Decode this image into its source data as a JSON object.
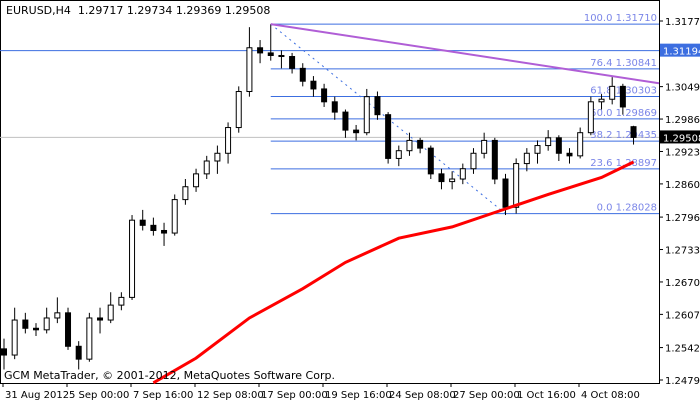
{
  "header": {
    "symbol": "EURUSD,H4",
    "open": "1.29717",
    "high": "1.29734",
    "low": "1.29369",
    "close": "1.29508"
  },
  "copyright": "GCM MetaTrader, © 2001-2012, MetaQuotes Software Corp.",
  "colors": {
    "candle": "#000000",
    "grid_level": "#3c6ee0",
    "fib_text": "#7b86e8",
    "trendline": "#b05ed6",
    "ma": "#ff0000",
    "current_price_line": "#c0c0c0"
  },
  "chart_data": {
    "type": "candlestick",
    "symbol": "EURUSD",
    "timeframe": "H4",
    "ylim": [
      1.24795,
      1.3177
    ],
    "y_ticks": [
      "1.31770",
      "1.30495",
      "1.29865",
      "1.29235",
      "1.28605",
      "1.27960",
      "1.27330",
      "1.26700",
      "1.26070",
      "1.25425",
      "1.24795"
    ],
    "x_ticks": [
      "31 Aug 2012",
      "5 Sep 00:00",
      "7 Sep 16:00",
      "12 Sep 08:00",
      "17 Sep 00:00",
      "19 Sep 16:00",
      "24 Sep 08:00",
      "27 Sep 00:00",
      "1 Oct 16:00",
      "4 Oct 08:00"
    ],
    "candles": [
      [
        1.254,
        1.256,
        1.25,
        1.2528
      ],
      [
        1.2528,
        1.262,
        1.252,
        1.2596
      ],
      [
        1.2596,
        1.261,
        1.257,
        1.258
      ],
      [
        1.258,
        1.259,
        1.2565,
        1.2577
      ],
      [
        1.2577,
        1.262,
        1.257,
        1.26
      ],
      [
        1.26,
        1.264,
        1.259,
        1.261
      ],
      [
        1.261,
        1.262,
        1.2538,
        1.2545
      ],
      [
        1.2545,
        1.2555,
        1.25,
        1.252
      ],
      [
        1.252,
        1.261,
        1.2515,
        1.26
      ],
      [
        1.26,
        1.262,
        1.257,
        1.2596
      ],
      [
        1.2596,
        1.265,
        1.259,
        1.2625
      ],
      [
        1.2625,
        1.265,
        1.2615,
        1.264
      ],
      [
        1.264,
        1.28,
        1.2635,
        1.279
      ],
      [
        1.279,
        1.281,
        1.277,
        1.278
      ],
      [
        1.278,
        1.2795,
        1.276,
        1.277
      ],
      [
        1.277,
        1.2785,
        1.274,
        1.2765
      ],
      [
        1.2765,
        1.284,
        1.276,
        1.283
      ],
      [
        1.283,
        1.287,
        1.282,
        1.2855
      ],
      [
        1.2855,
        1.289,
        1.2845,
        1.288
      ],
      [
        1.288,
        1.2915,
        1.287,
        1.2905
      ],
      [
        1.2905,
        1.2935,
        1.288,
        1.292
      ],
      [
        1.292,
        1.298,
        1.29,
        1.297
      ],
      [
        1.297,
        1.305,
        1.296,
        1.304
      ],
      [
        1.304,
        1.3165,
        1.303,
        1.3125
      ],
      [
        1.3125,
        1.314,
        1.3095,
        1.3115
      ],
      [
        1.3115,
        1.3171,
        1.31,
        1.311
      ],
      [
        1.311,
        1.312,
        1.3085,
        1.3108
      ],
      [
        1.3108,
        1.3115,
        1.3075,
        1.3085
      ],
      [
        1.3085,
        1.3095,
        1.305,
        1.306
      ],
      [
        1.306,
        1.307,
        1.303,
        1.3045
      ],
      [
        1.3045,
        1.3055,
        1.301,
        1.302
      ],
      [
        1.302,
        1.303,
        1.2985,
        1.3
      ],
      [
        1.3,
        1.3005,
        1.295,
        1.2965
      ],
      [
        1.2965,
        1.2975,
        1.2945,
        1.296
      ],
      [
        1.296,
        1.3045,
        1.2955,
        1.303
      ],
      [
        1.303,
        1.304,
        1.2985,
        1.2995
      ],
      [
        1.2995,
        1.3,
        1.29,
        1.291
      ],
      [
        1.291,
        1.2935,
        1.2895,
        1.2925
      ],
      [
        1.2925,
        1.296,
        1.2915,
        1.2945
      ],
      [
        1.2945,
        1.295,
        1.292,
        1.293
      ],
      [
        1.293,
        1.2935,
        1.287,
        1.288
      ],
      [
        1.288,
        1.289,
        1.285,
        1.2865
      ],
      [
        1.2865,
        1.2885,
        1.285,
        1.287
      ],
      [
        1.287,
        1.29,
        1.286,
        1.289
      ],
      [
        1.289,
        1.293,
        1.288,
        1.292
      ],
      [
        1.292,
        1.296,
        1.291,
        1.2945
      ],
      [
        1.2945,
        1.295,
        1.286,
        1.287
      ],
      [
        1.287,
        1.288,
        1.28,
        1.2815
      ],
      [
        1.2815,
        1.291,
        1.2803,
        1.29
      ],
      [
        1.29,
        1.293,
        1.2885,
        1.292
      ],
      [
        1.292,
        1.2945,
        1.29,
        1.2935
      ],
      [
        1.2935,
        1.2965,
        1.2925,
        1.295
      ],
      [
        1.295,
        1.2955,
        1.2905,
        1.292
      ],
      [
        1.292,
        1.293,
        1.29,
        1.2915
      ],
      [
        1.2915,
        1.297,
        1.291,
        1.296
      ],
      [
        1.296,
        1.303,
        1.2955,
        1.302
      ],
      [
        1.302,
        1.3035,
        1.3005,
        1.3025
      ],
      [
        1.3025,
        1.3068,
        1.3015,
        1.305
      ],
      [
        1.305,
        1.3055,
        1.2995,
        1.301
      ],
      [
        1.29717,
        1.29734,
        1.29369,
        1.29508
      ]
    ],
    "moving_average": [
      [
        14,
        1.2474
      ],
      [
        18,
        1.2522
      ],
      [
        23,
        1.26
      ],
      [
        28,
        1.2657
      ],
      [
        32,
        1.2708
      ],
      [
        37,
        1.2755
      ],
      [
        42,
        1.2777
      ],
      [
        47,
        1.2812
      ],
      [
        51,
        1.284
      ],
      [
        56,
        1.2873
      ],
      [
        59,
        1.2903
      ]
    ],
    "fibonacci": {
      "from_candle": 25,
      "to_candle": 47,
      "levels": [
        {
          "label": "100.0 1.31710",
          "price": 1.3171
        },
        {
          "label": "76.4 1.30841",
          "price": 1.30841
        },
        {
          "label": "61.8 1.30303",
          "price": 1.30303
        },
        {
          "label": "50.0 1.29869",
          "price": 1.29869
        },
        {
          "label": "38.2 1.29435",
          "price": 1.29435
        },
        {
          "label": "23.6 1.28897",
          "price": 1.28897
        },
        {
          "label": "0.0 1.28028",
          "price": 1.28028
        }
      ]
    },
    "trendline": {
      "start_candle": 25,
      "start_price": 1.3171,
      "end_price_at_right_edge": 1.3056
    },
    "horizontal_line": {
      "price": 1.31194,
      "label": "1.31194"
    },
    "current_price": {
      "price": 1.29508,
      "label": "1.29508"
    }
  }
}
